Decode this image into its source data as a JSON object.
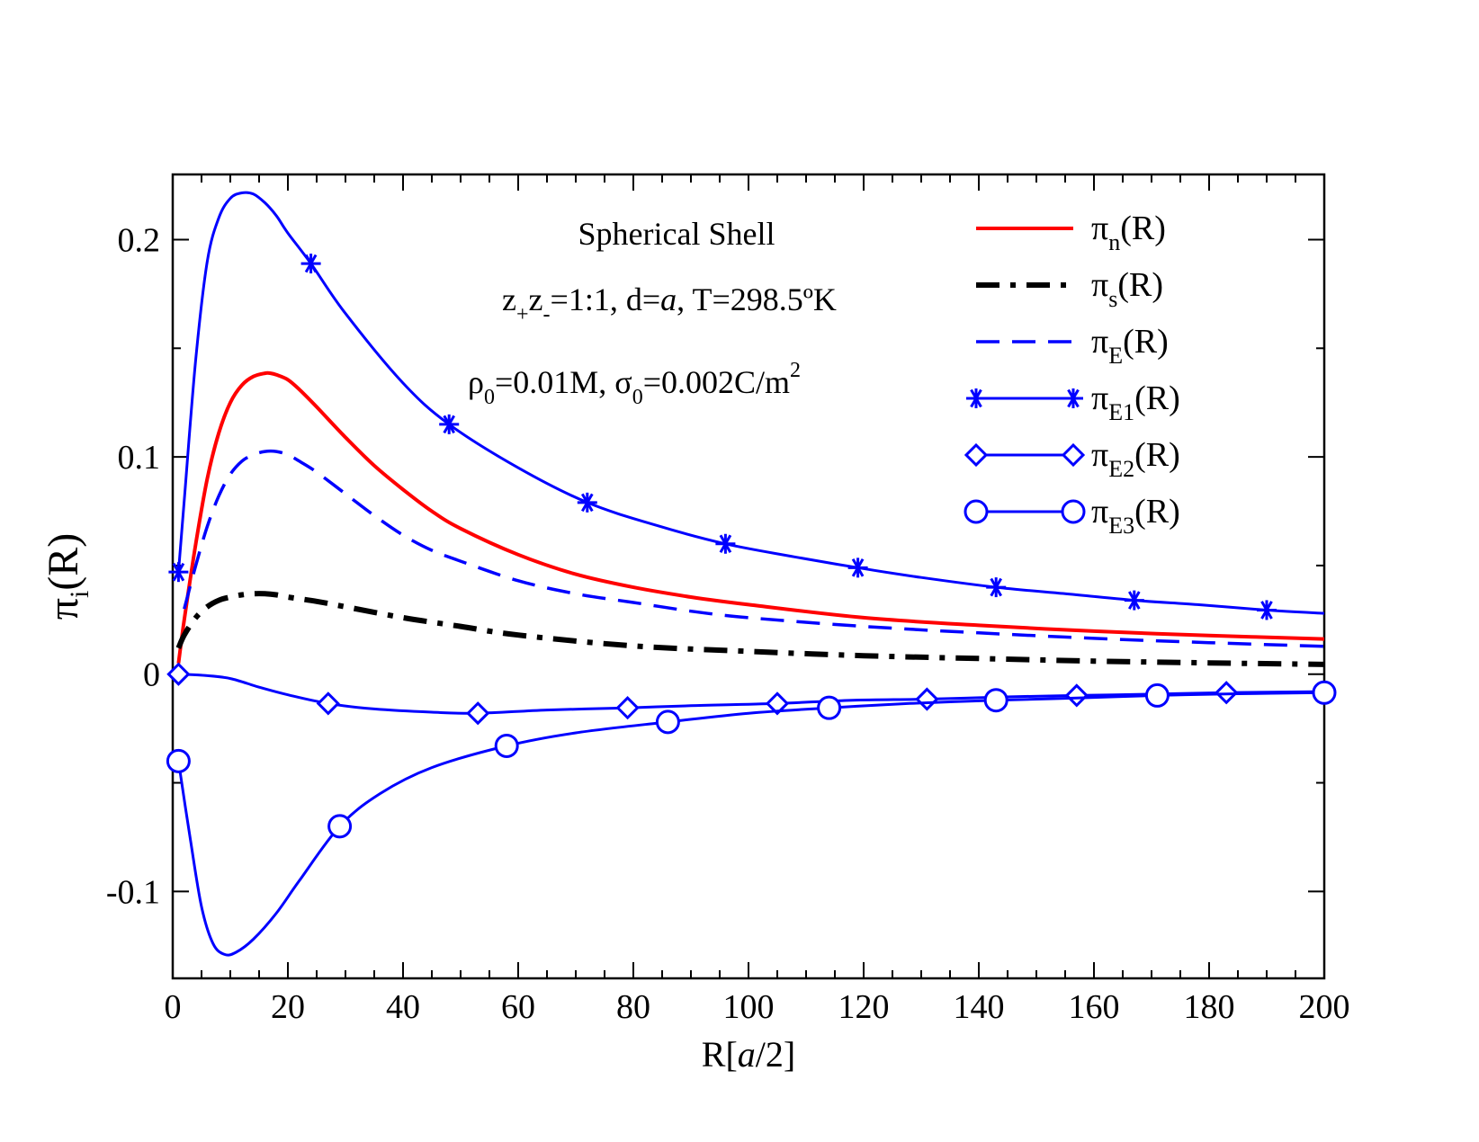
{
  "chart_data": {
    "type": "line",
    "title": "",
    "xlabel_parts": [
      "R[",
      "a",
      "/2]"
    ],
    "ylabel_parts": {
      "main": "π",
      "sub": "i",
      "tail": "(R)"
    },
    "xlim": [
      0,
      200
    ],
    "ylim": [
      -0.14,
      0.23
    ],
    "x_ticks": [
      0,
      20,
      40,
      60,
      80,
      100,
      120,
      140,
      160,
      180,
      200
    ],
    "x_tick_labels": [
      "0",
      "20",
      "40",
      "60",
      "80",
      "100",
      "120",
      "140",
      "160",
      "180",
      "200"
    ],
    "y_ticks": [
      -0.1,
      0,
      0.1,
      0.2
    ],
    "y_tick_labels": [
      "-0.1",
      "0",
      "0.1",
      "0.2"
    ],
    "annotations": {
      "title_line": "Spherical Shell",
      "line2": {
        "z": "z",
        "plus": "+",
        "minus": "-",
        "rest1": "=1:1, d=",
        "a": "a",
        "rest2": ", T=298.5ºK"
      },
      "line3": {
        "rho": "ρ",
        "sub0a": "0",
        "mid": "=0.01M, σ",
        "sub0b": "0",
        "tail": "=0.002C/m",
        "sup": "2"
      }
    },
    "legend_position": "top-right",
    "series": [
      {
        "name": "π_n(R)",
        "base": "π",
        "sub": "n",
        "suffix": "(R)",
        "color": "#ff0000",
        "style": "solid",
        "marker": "none",
        "x": [
          1,
          2,
          4,
          6,
          8,
          10,
          12,
          14,
          16,
          17,
          18,
          20,
          22,
          25,
          30,
          35,
          40,
          45,
          50,
          60,
          70,
          80,
          90,
          100,
          120,
          140,
          160,
          180,
          200
        ],
        "y": [
          0.005,
          0.025,
          0.06,
          0.09,
          0.111,
          0.125,
          0.133,
          0.137,
          0.1385,
          0.1385,
          0.1378,
          0.1355,
          0.131,
          0.123,
          0.109,
          0.096,
          0.085,
          0.075,
          0.067,
          0.055,
          0.046,
          0.04,
          0.0355,
          0.032,
          0.026,
          0.0225,
          0.0198,
          0.0178,
          0.0162
        ]
      },
      {
        "name": "π_s(R)",
        "base": "π",
        "sub": "s",
        "suffix": "(R)",
        "color": "#000000",
        "style": "dashdot",
        "marker": "none",
        "x": [
          1,
          2,
          4,
          6,
          8,
          10,
          12,
          14,
          16,
          18,
          20,
          25,
          30,
          40,
          50,
          60,
          80,
          100,
          120,
          140,
          160,
          180,
          200
        ],
        "y": [
          0.012,
          0.018,
          0.026,
          0.031,
          0.034,
          0.0355,
          0.0365,
          0.037,
          0.037,
          0.0365,
          0.0355,
          0.0335,
          0.031,
          0.026,
          0.022,
          0.018,
          0.013,
          0.0105,
          0.0085,
          0.0072,
          0.006,
          0.0052,
          0.0045
        ]
      },
      {
        "name": "π_E(R)",
        "base": "π",
        "sub": "E",
        "suffix": "(R)",
        "color": "#0000ff",
        "style": "dashed",
        "marker": "none",
        "x": [
          2,
          4,
          6,
          8,
          10,
          12,
          14,
          16,
          18,
          20,
          22,
          25,
          30,
          35,
          40,
          45,
          50,
          60,
          70,
          80,
          90,
          100,
          120,
          140,
          160,
          180,
          200
        ],
        "y": [
          0.03,
          0.05,
          0.068,
          0.082,
          0.092,
          0.098,
          0.101,
          0.1025,
          0.1025,
          0.101,
          0.098,
          0.093,
          0.083,
          0.073,
          0.064,
          0.057,
          0.052,
          0.043,
          0.037,
          0.033,
          0.029,
          0.026,
          0.022,
          0.019,
          0.0165,
          0.0145,
          0.0128
        ]
      },
      {
        "name": "π_E1(R)",
        "base": "π",
        "sub": "E1",
        "suffix": "(R)",
        "color": "#0000ff",
        "style": "solid",
        "marker": "star",
        "x": [
          1,
          2,
          4,
          6,
          8,
          10,
          12,
          14,
          16,
          18,
          20,
          24,
          30,
          40,
          48,
          60,
          72,
          84,
          96,
          108,
          119,
          130,
          143,
          155,
          167,
          178,
          190,
          200
        ],
        "y": [
          0.047,
          0.08,
          0.145,
          0.19,
          0.21,
          0.219,
          0.2215,
          0.221,
          0.217,
          0.211,
          0.203,
          0.189,
          0.166,
          0.134,
          0.115,
          0.095,
          0.079,
          0.0685,
          0.06,
          0.054,
          0.049,
          0.0445,
          0.04,
          0.037,
          0.034,
          0.032,
          0.0295,
          0.028
        ]
      },
      {
        "name": "π_E2(R)",
        "base": "π",
        "sub": "E2",
        "suffix": "(R)",
        "color": "#0000ff",
        "style": "solid",
        "marker": "diamond",
        "x": [
          1,
          5,
          10,
          15,
          20,
          27,
          35,
          45,
          53,
          65,
          79,
          90,
          105,
          118,
          131,
          144,
          157,
          170,
          183,
          200
        ],
        "y": [
          0,
          -0.0005,
          -0.002,
          -0.006,
          -0.0095,
          -0.0135,
          -0.016,
          -0.0175,
          -0.018,
          -0.0165,
          -0.0155,
          -0.0145,
          -0.0135,
          -0.012,
          -0.0115,
          -0.0105,
          -0.0098,
          -0.0092,
          -0.0085,
          -0.008
        ]
      },
      {
        "name": "π_E3(R)",
        "base": "π",
        "sub": "E3",
        "suffix": "(R)",
        "color": "#0000ff",
        "style": "solid",
        "marker": "circle",
        "x": [
          1,
          3,
          5,
          7,
          9,
          11,
          14,
          18,
          22,
          29,
          36,
          45,
          58,
          70,
          86,
          100,
          114,
          128,
          143,
          157,
          171,
          185,
          200
        ],
        "y": [
          -0.04,
          -0.075,
          -0.107,
          -0.124,
          -0.129,
          -0.128,
          -0.122,
          -0.11,
          -0.095,
          -0.07,
          -0.055,
          -0.043,
          -0.033,
          -0.027,
          -0.022,
          -0.018,
          -0.0155,
          -0.0135,
          -0.012,
          -0.011,
          -0.0098,
          -0.009,
          -0.0085
        ]
      }
    ]
  }
}
